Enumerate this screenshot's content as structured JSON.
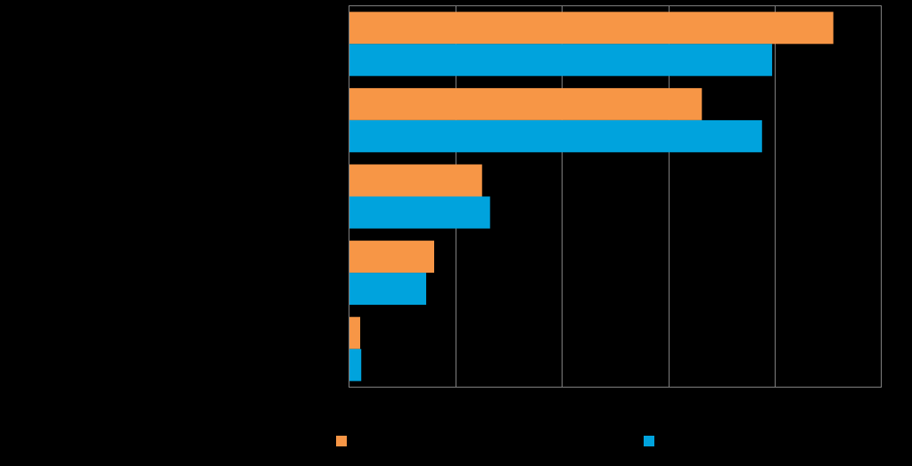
{
  "chart_data": {
    "type": "bar",
    "orientation": "horizontal",
    "categories": [
      "",
      "",
      "",
      "",
      ""
    ],
    "series": [
      {
        "values": [
          91,
          66.3,
          25,
          16,
          2.1
        ],
        "color": "#F79646"
      },
      {
        "values": [
          79.5,
          77.6,
          26.5,
          14.5,
          2.3
        ],
        "color": "#00A3DD"
      }
    ],
    "xlim": [
      0,
      100
    ],
    "grid": true,
    "legend": "bottom"
  }
}
